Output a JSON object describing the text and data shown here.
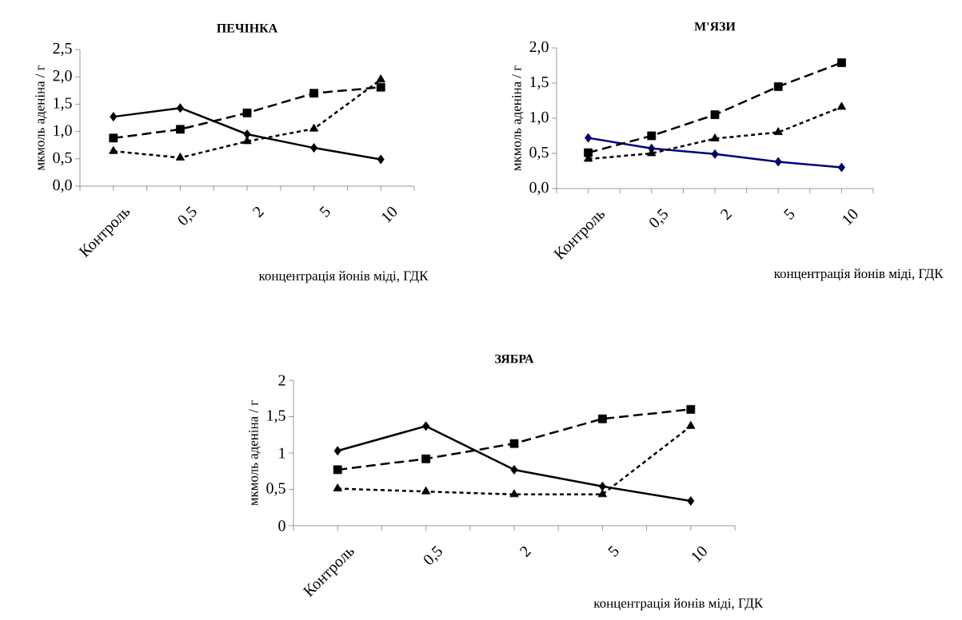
{
  "chart_data": [
    {
      "type": "line",
      "title": "ПЕЧІНКА",
      "xlabel": "концентрація йонів міді, ГДК",
      "ylabel": "мкмоль аденіна / г",
      "categories": [
        "Контроль",
        "0,5",
        "2",
        "5",
        "10"
      ],
      "ylim": [
        0,
        2.5
      ],
      "yticks": [
        {
          "value": 0,
          "label": "0,0"
        },
        {
          "value": 0.5,
          "label": "0,5"
        },
        {
          "value": 1,
          "label": "1,0"
        },
        {
          "value": 1.5,
          "label": "1,5"
        },
        {
          "value": 2,
          "label": "2,0"
        },
        {
          "value": 2.5,
          "label": "2,5"
        }
      ],
      "grid": false,
      "series": [
        {
          "color": "#000000",
          "marker": "diamond",
          "line_style": "solid",
          "values": [
            1.27,
            1.43,
            0.95,
            0.7,
            0.49
          ]
        },
        {
          "color": "#000000",
          "marker": "square",
          "line_style": "dashed",
          "values": [
            0.88,
            1.04,
            1.34,
            1.7,
            1.81
          ]
        },
        {
          "color": "#000000",
          "marker": "triangle",
          "line_style": "dotted",
          "values": [
            0.64,
            0.52,
            0.82,
            1.05,
            1.95
          ]
        }
      ]
    },
    {
      "type": "line",
      "title": "М'ЯЗИ",
      "xlabel": "концентрація йонів міді, ГДК",
      "ylabel": "мкмоль аденіна / г",
      "categories": [
        "Контроль",
        "0,5",
        "2",
        "5",
        "10"
      ],
      "ylim": [
        0,
        2
      ],
      "yticks": [
        {
          "value": 0,
          "label": "0,0"
        },
        {
          "value": 0.5,
          "label": "0,5"
        },
        {
          "value": 1,
          "label": "1,0"
        },
        {
          "value": 1.5,
          "label": "1,5"
        },
        {
          "value": 2,
          "label": "2,0"
        }
      ],
      "grid": false,
      "series": [
        {
          "color": "#000080",
          "marker": "diamond",
          "line_style": "solid",
          "values": [
            0.72,
            0.57,
            0.49,
            0.38,
            0.3
          ]
        },
        {
          "color": "#000000",
          "marker": "square",
          "line_style": "dashed",
          "values": [
            0.51,
            0.75,
            1.05,
            1.45,
            1.79
          ]
        },
        {
          "color": "#000000",
          "marker": "triangle",
          "line_style": "dotted",
          "values": [
            0.42,
            0.5,
            0.71,
            0.8,
            1.16
          ]
        }
      ]
    },
    {
      "type": "line",
      "title": "ЗЯБРА",
      "xlabel": "концентрація йонів міді, ГДК",
      "ylabel": "мкмоль аденіна / г",
      "categories": [
        "Контроль",
        "0,5",
        "2",
        "5",
        "10"
      ],
      "ylim": [
        0,
        2
      ],
      "yticks": [
        0,
        {
          "value": 0.5,
          "label": "0,5"
        },
        1,
        {
          "value": 1.5,
          "label": "1,5"
        },
        2
      ],
      "grid": false,
      "series": [
        {
          "color": "#000000",
          "marker": "diamond",
          "line_style": "solid",
          "values": [
            1.03,
            1.37,
            0.77,
            0.54,
            0.34
          ]
        },
        {
          "color": "#000000",
          "marker": "square",
          "line_style": "dashed",
          "values": [
            0.77,
            0.92,
            1.13,
            1.47,
            1.6
          ]
        },
        {
          "color": "#000000",
          "marker": "triangle",
          "line_style": "dotted",
          "values": [
            0.51,
            0.47,
            0.43,
            0.43,
            1.37
          ]
        }
      ]
    }
  ]
}
